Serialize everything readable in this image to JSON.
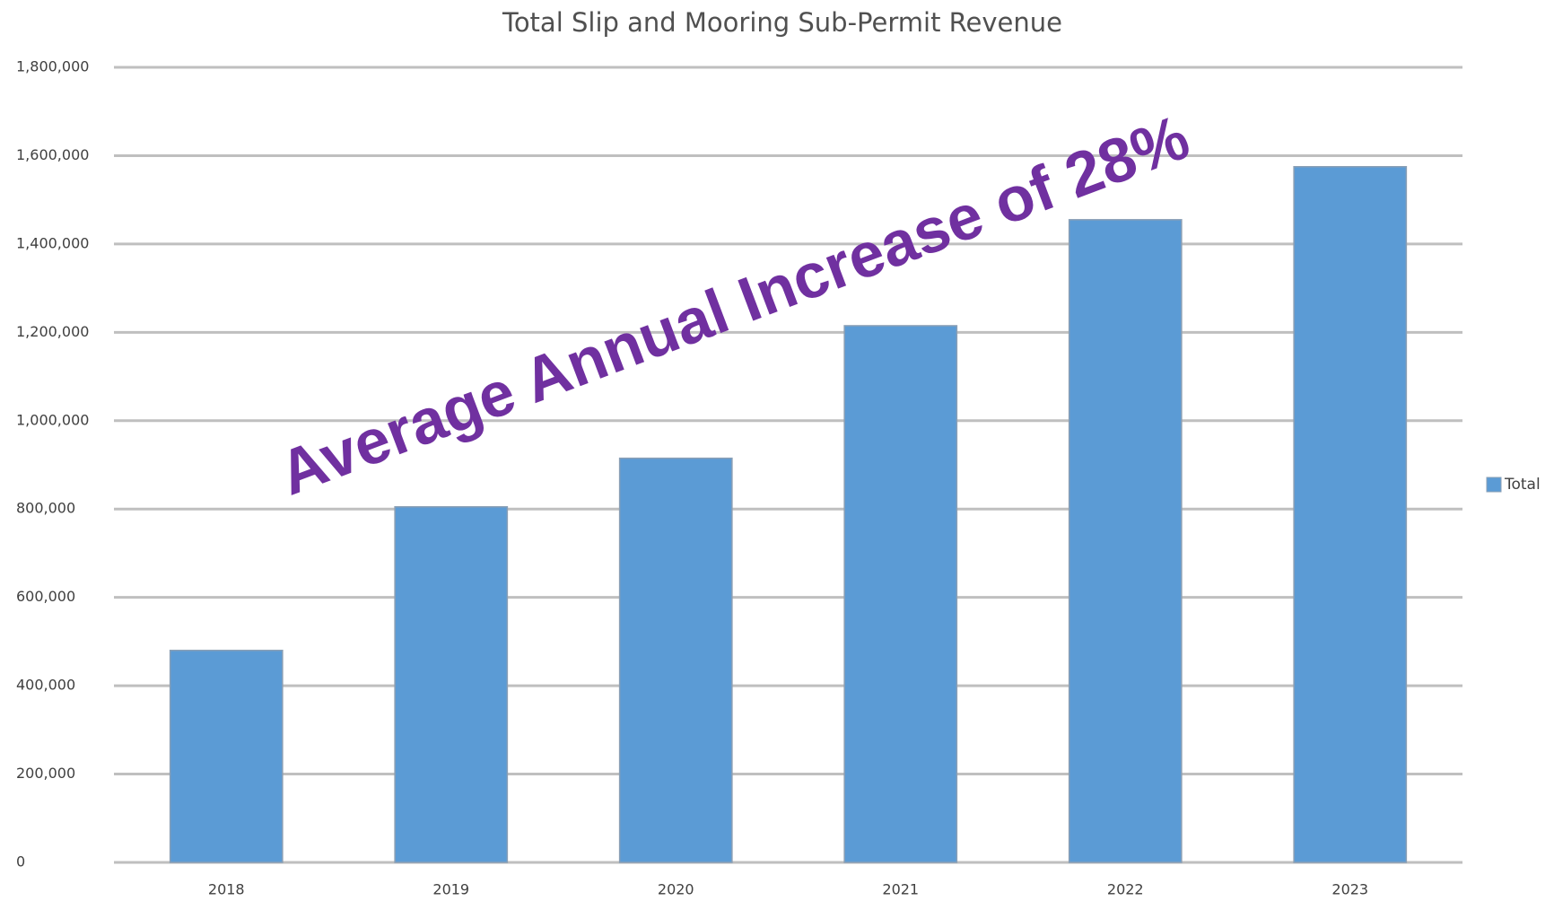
{
  "chart_data": {
    "type": "bar",
    "title": "Total Slip and Mooring Sub-Permit Revenue",
    "annotation": "Average Annual Increase of 28%",
    "categories": [
      "2018",
      "2019",
      "2020",
      "2021",
      "2022",
      "2023"
    ],
    "series": [
      {
        "name": "Total",
        "color": "#5b9bd5",
        "values": [
          480000,
          805000,
          915000,
          1215000,
          1455000,
          1575000
        ]
      }
    ],
    "ylim": [
      0,
      1800000
    ],
    "yticks": [
      0,
      {
        "value": 200000,
        "label": "200,000"
      },
      {
        "value": 400000,
        "label": "400,000"
      },
      {
        "value": 600000,
        "label": "600,000"
      },
      {
        "value": 800000,
        "label": "800,000"
      },
      {
        "value": 1000000,
        "label": "1,000,000"
      },
      {
        "value": 1200000,
        "label": "1,200,000"
      },
      {
        "value": 1400000,
        "label": "1,400,000"
      },
      {
        "value": 1600000,
        "label": "1,600,000"
      },
      {
        "value": 1800000,
        "label": "1,800,000"
      }
    ],
    "grid": true,
    "legend": "right"
  }
}
